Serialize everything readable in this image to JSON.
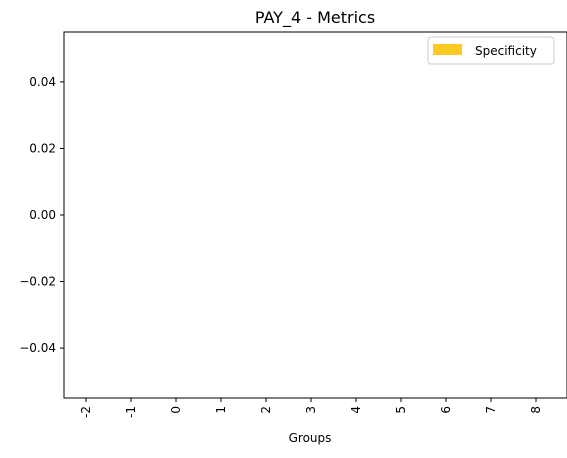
{
  "chart_data": {
    "type": "bar",
    "title": "PAY_4 - Metrics",
    "xlabel": "Groups",
    "ylabel": "",
    "categories": [
      "-2",
      "-1",
      "0",
      "1",
      "2",
      "3",
      "4",
      "5",
      "6",
      "7",
      "8"
    ],
    "series": [
      {
        "name": "Specificity",
        "color": "#fcca22",
        "values": [
          0,
          0,
          0,
          0,
          0,
          0,
          0,
          0,
          0,
          0,
          0
        ]
      }
    ],
    "ylim": [
      -0.055,
      0.055
    ],
    "yticks": [
      -0.04,
      -0.02,
      0.0,
      0.02,
      0.04
    ],
    "ytick_labels": [
      "−0.04",
      "−0.02",
      "0.00",
      "0.02",
      "0.04"
    ],
    "grid": false,
    "legend_position": "top-right"
  }
}
